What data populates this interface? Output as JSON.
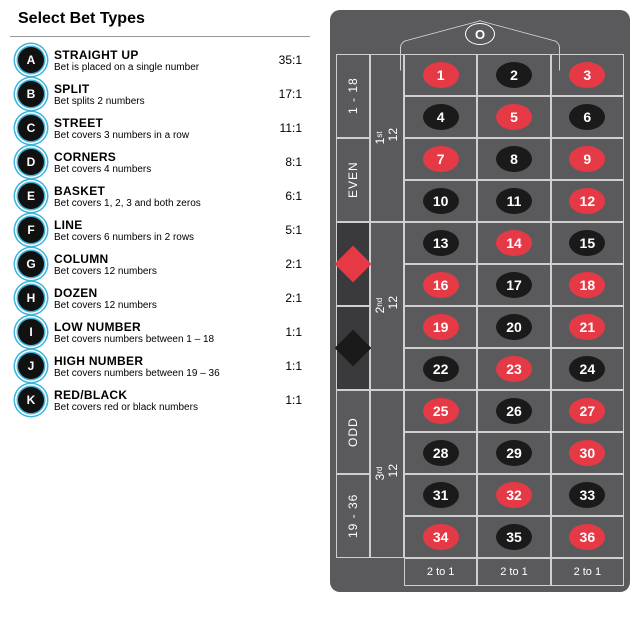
{
  "title": "Select Bet Types",
  "bets": [
    {
      "letter": "A",
      "name": "STRAIGHT UP",
      "desc": "Bet is placed on a single number",
      "payout": "35:1"
    },
    {
      "letter": "B",
      "name": "SPLIT",
      "desc": "Bet splits 2 numbers",
      "payout": "17:1"
    },
    {
      "letter": "C",
      "name": "STREET",
      "desc": "Bet covers 3 numbers in a row",
      "payout": "11:1"
    },
    {
      "letter": "D",
      "name": "CORNERS",
      "desc": "Bet covers 4 numbers",
      "payout": "8:1"
    },
    {
      "letter": "E",
      "name": "BASKET",
      "desc": "Bet covers 1, 2, 3 and both zeros",
      "payout": "6:1"
    },
    {
      "letter": "F",
      "name": "LINE",
      "desc": "Bet covers 6 numbers in 2 rows",
      "payout": "5:1"
    },
    {
      "letter": "G",
      "name": "COLUMN",
      "desc": "Bet covers 12 numbers",
      "payout": "2:1"
    },
    {
      "letter": "H",
      "name": "DOZEN",
      "desc": "Bet covers 12 numbers",
      "payout": "2:1"
    },
    {
      "letter": "I",
      "name": "LOW NUMBER",
      "desc": "Bet covers numbers between 1 – 18",
      "payout": "1:1"
    },
    {
      "letter": "J",
      "name": "HIGH NUMBER",
      "desc": "Bet covers numbers between 19 – 36",
      "payout": "1:1"
    },
    {
      "letter": "K",
      "name": "RED/BLACK",
      "desc": "Bet covers red or black numbers",
      "payout": "1:1"
    }
  ],
  "colors": {
    "chip_rim": "#3fb3d9",
    "chip_fill": "#111111",
    "table_bg": "#5a5a5c",
    "red": "#e63946",
    "black": "#1a1a1a",
    "dark_cell": "#3a3a3c",
    "grid_line": "#cfcfcf",
    "text_white": "#ffffff",
    "text_black": "#111111"
  },
  "zero_label": "O",
  "outside_bets": {
    "low": "1 - 18",
    "even": "EVEN",
    "red": "RED",
    "black": "BLACK",
    "odd": "ODD",
    "high": "19 - 36"
  },
  "dozens": [
    "1",
    "2",
    "3"
  ],
  "dozen_suffix": [
    "st",
    "nd",
    "rd"
  ],
  "dozen_label": "12",
  "column_label": "2 to 1",
  "numbers": [
    {
      "n": 1,
      "c": "red"
    },
    {
      "n": 2,
      "c": "black"
    },
    {
      "n": 3,
      "c": "red"
    },
    {
      "n": 4,
      "c": "black"
    },
    {
      "n": 5,
      "c": "red"
    },
    {
      "n": 6,
      "c": "black"
    },
    {
      "n": 7,
      "c": "red"
    },
    {
      "n": 8,
      "c": "black"
    },
    {
      "n": 9,
      "c": "red"
    },
    {
      "n": 10,
      "c": "black"
    },
    {
      "n": 11,
      "c": "black"
    },
    {
      "n": 12,
      "c": "red"
    },
    {
      "n": 13,
      "c": "black"
    },
    {
      "n": 14,
      "c": "red"
    },
    {
      "n": 15,
      "c": "black"
    },
    {
      "n": 16,
      "c": "red"
    },
    {
      "n": 17,
      "c": "black"
    },
    {
      "n": 18,
      "c": "red"
    },
    {
      "n": 19,
      "c": "red"
    },
    {
      "n": 20,
      "c": "black"
    },
    {
      "n": 21,
      "c": "red"
    },
    {
      "n": 22,
      "c": "black"
    },
    {
      "n": 23,
      "c": "red"
    },
    {
      "n": 24,
      "c": "black"
    },
    {
      "n": 25,
      "c": "red"
    },
    {
      "n": 26,
      "c": "black"
    },
    {
      "n": 27,
      "c": "red"
    },
    {
      "n": 28,
      "c": "black"
    },
    {
      "n": 29,
      "c": "black"
    },
    {
      "n": 30,
      "c": "red"
    },
    {
      "n": 31,
      "c": "black"
    },
    {
      "n": 32,
      "c": "red"
    },
    {
      "n": 33,
      "c": "black"
    },
    {
      "n": 34,
      "c": "red"
    },
    {
      "n": 35,
      "c": "black"
    },
    {
      "n": 36,
      "c": "red"
    }
  ]
}
